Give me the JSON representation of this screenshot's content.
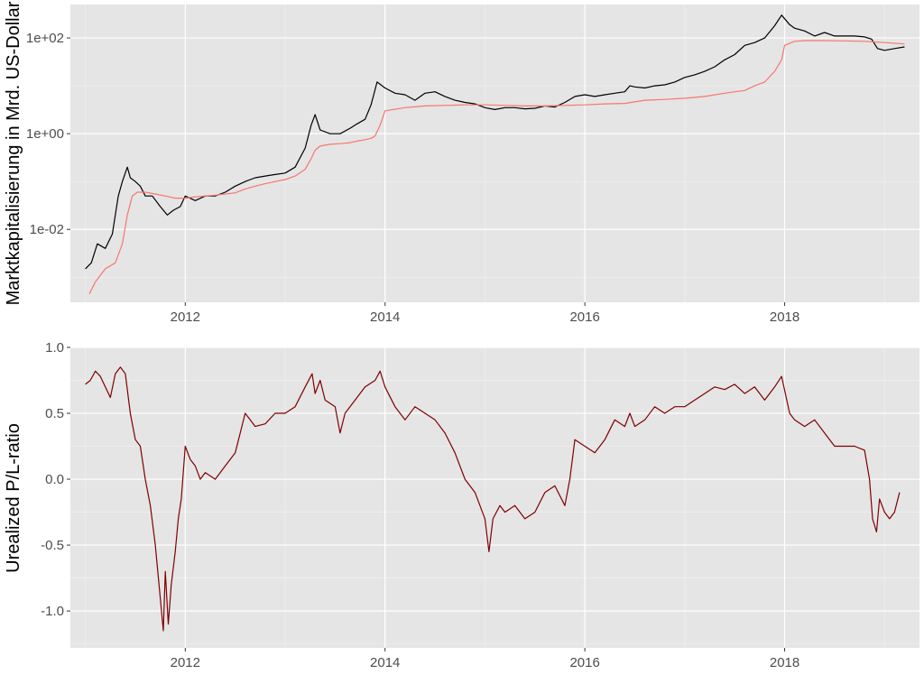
{
  "chart_data": [
    {
      "id": "market-cap-panel",
      "type": "line",
      "title": "",
      "xlabel": "",
      "ylabel": "Marktkapitalisierung in Mrd. US-Dollar",
      "y_scale": "log10",
      "xlim": [
        2010.85,
        2019.35
      ],
      "ylim": [
        0.0003,
        500
      ],
      "x_ticks": [
        2012,
        2014,
        2016,
        2018
      ],
      "x_tick_labels": [
        "2012",
        "2014",
        "2016",
        "2018"
      ],
      "y_ticks": [
        0.01,
        1,
        100
      ],
      "y_tick_labels": [
        "1e-02",
        "1e+00",
        "1e+02"
      ],
      "grid": true,
      "panel_background": "#e5e5e5",
      "series": [
        {
          "color": "#000000",
          "x": [
            2011.0,
            2011.06,
            2011.12,
            2011.2,
            2011.27,
            2011.33,
            2011.37,
            2011.42,
            2011.45,
            2011.5,
            2011.55,
            2011.6,
            2011.67,
            2011.75,
            2011.82,
            2011.88,
            2011.95,
            2012.0,
            2012.1,
            2012.2,
            2012.3,
            2012.4,
            2012.5,
            2012.6,
            2012.7,
            2012.8,
            2012.9,
            2013.0,
            2013.1,
            2013.2,
            2013.26,
            2013.3,
            2013.35,
            2013.45,
            2013.55,
            2013.65,
            2013.72,
            2013.8,
            2013.86,
            2013.92,
            2014.0,
            2014.1,
            2014.2,
            2014.3,
            2014.4,
            2014.5,
            2014.6,
            2014.7,
            2014.8,
            2014.9,
            2015.0,
            2015.1,
            2015.2,
            2015.3,
            2015.4,
            2015.5,
            2015.6,
            2015.7,
            2015.8,
            2015.9,
            2016.0,
            2016.1,
            2016.2,
            2016.3,
            2016.4,
            2016.45,
            2016.5,
            2016.6,
            2016.7,
            2016.8,
            2016.9,
            2017.0,
            2017.1,
            2017.2,
            2017.3,
            2017.4,
            2017.5,
            2017.6,
            2017.7,
            2017.8,
            2017.9,
            2017.97,
            2018.05,
            2018.1,
            2018.2,
            2018.3,
            2018.4,
            2018.5,
            2018.6,
            2018.7,
            2018.8,
            2018.87,
            2018.93,
            2019.0,
            2019.1,
            2019.2
          ],
          "y": [
            0.0015,
            0.002,
            0.005,
            0.004,
            0.008,
            0.05,
            0.1,
            0.2,
            0.12,
            0.1,
            0.08,
            0.05,
            0.05,
            0.03,
            0.02,
            0.025,
            0.03,
            0.05,
            0.04,
            0.05,
            0.05,
            0.06,
            0.08,
            0.1,
            0.12,
            0.13,
            0.14,
            0.15,
            0.2,
            0.5,
            1.5,
            2.5,
            1.2,
            1.0,
            1.0,
            1.3,
            1.6,
            2.0,
            4.0,
            12.0,
            9.0,
            7.0,
            6.5,
            5.0,
            7.0,
            7.5,
            6.0,
            5.0,
            4.5,
            4.2,
            3.5,
            3.2,
            3.5,
            3.5,
            3.3,
            3.4,
            3.8,
            3.6,
            4.5,
            6.0,
            6.5,
            6.0,
            6.5,
            7.0,
            7.5,
            10.0,
            9.5,
            9.0,
            10.0,
            10.5,
            12.0,
            15.0,
            17.0,
            20.0,
            25.0,
            35.0,
            45.0,
            70.0,
            80.0,
            100.0,
            180.0,
            300.0,
            190.0,
            160.0,
            140.0,
            110.0,
            130.0,
            110.0,
            110.0,
            110.0,
            105.0,
            95.0,
            60.0,
            55.0,
            60.0,
            65.0
          ]
        },
        {
          "color": "#f8766d",
          "x": [
            2011.04,
            2011.1,
            2011.2,
            2011.3,
            2011.37,
            2011.42,
            2011.47,
            2011.52,
            2011.6,
            2011.7,
            2011.8,
            2011.9,
            2012.0,
            2012.1,
            2012.2,
            2012.3,
            2012.4,
            2012.5,
            2012.6,
            2012.7,
            2012.8,
            2012.9,
            2013.0,
            2013.1,
            2013.2,
            2013.26,
            2013.3,
            2013.35,
            2013.45,
            2013.55,
            2013.65,
            2013.72,
            2013.8,
            2013.86,
            2013.9,
            2013.95,
            2014.0,
            2014.2,
            2014.4,
            2014.6,
            2014.8,
            2015.0,
            2015.2,
            2015.4,
            2015.6,
            2015.8,
            2016.0,
            2016.2,
            2016.4,
            2016.6,
            2016.8,
            2017.0,
            2017.2,
            2017.4,
            2017.5,
            2017.6,
            2017.7,
            2017.8,
            2017.9,
            2017.97,
            2018.0,
            2018.1,
            2018.2,
            2018.4,
            2018.6,
            2018.8,
            2019.0,
            2019.2
          ],
          "y": [
            0.00045,
            0.0008,
            0.0015,
            0.002,
            0.005,
            0.02,
            0.05,
            0.06,
            0.06,
            0.055,
            0.05,
            0.045,
            0.045,
            0.048,
            0.05,
            0.052,
            0.055,
            0.058,
            0.07,
            0.08,
            0.09,
            0.1,
            0.11,
            0.13,
            0.18,
            0.3,
            0.45,
            0.55,
            0.6,
            0.62,
            0.65,
            0.7,
            0.75,
            0.8,
            0.9,
            1.5,
            3.0,
            3.5,
            3.8,
            3.9,
            4.0,
            4.0,
            3.9,
            3.8,
            3.8,
            3.9,
            4.0,
            4.2,
            4.3,
            5.0,
            5.2,
            5.5,
            6.0,
            7.0,
            7.5,
            8.0,
            10.0,
            12.0,
            20.0,
            35.0,
            70.0,
            85.0,
            88.0,
            88.0,
            87.0,
            85.0,
            80.0,
            75.0
          ]
        }
      ]
    },
    {
      "id": "pl-ratio-panel",
      "type": "line",
      "title": "",
      "xlabel": "",
      "ylabel": "Urealized P/L-ratio",
      "y_scale": "linear",
      "xlim": [
        2010.85,
        2019.35
      ],
      "ylim": [
        -1.28,
        1.0
      ],
      "x_ticks": [
        2012,
        2014,
        2016,
        2018
      ],
      "x_tick_labels": [
        "2012",
        "2014",
        "2016",
        "2018"
      ],
      "y_ticks": [
        -1.0,
        -0.5,
        0.0,
        0.5,
        1.0
      ],
      "y_tick_labels": [
        "-1.0",
        "-0.5",
        "0.0",
        "0.5",
        "1.0"
      ],
      "grid": true,
      "panel_background": "#e5e5e5",
      "series": [
        {
          "color": "#7f0000",
          "x": [
            2011.0,
            2011.05,
            2011.1,
            2011.15,
            2011.2,
            2011.25,
            2011.3,
            2011.35,
            2011.4,
            2011.45,
            2011.5,
            2011.55,
            2011.6,
            2011.65,
            2011.7,
            2011.75,
            2011.78,
            2011.8,
            2011.83,
            2011.86,
            2011.9,
            2011.93,
            2011.96,
            2012.0,
            2012.05,
            2012.1,
            2012.15,
            2012.2,
            2012.3,
            2012.4,
            2012.5,
            2012.6,
            2012.65,
            2012.7,
            2012.8,
            2012.9,
            2013.0,
            2013.1,
            2013.2,
            2013.27,
            2013.3,
            2013.35,
            2013.4,
            2013.5,
            2013.55,
            2013.6,
            2013.7,
            2013.8,
            2013.9,
            2013.95,
            2014.0,
            2014.1,
            2014.2,
            2014.3,
            2014.4,
            2014.5,
            2014.6,
            2014.7,
            2014.8,
            2014.9,
            2015.0,
            2015.04,
            2015.08,
            2015.15,
            2015.2,
            2015.3,
            2015.4,
            2015.5,
            2015.6,
            2015.7,
            2015.8,
            2015.85,
            2015.9,
            2016.0,
            2016.1,
            2016.2,
            2016.3,
            2016.4,
            2016.45,
            2016.5,
            2016.6,
            2016.7,
            2016.8,
            2016.9,
            2017.0,
            2017.1,
            2017.2,
            2017.3,
            2017.4,
            2017.5,
            2017.6,
            2017.7,
            2017.8,
            2017.9,
            2017.97,
            2018.05,
            2018.1,
            2018.2,
            2018.3,
            2018.4,
            2018.5,
            2018.6,
            2018.7,
            2018.8,
            2018.85,
            2018.88,
            2018.92,
            2018.95,
            2019.0,
            2019.05,
            2019.1,
            2019.15
          ],
          "y": [
            0.72,
            0.75,
            0.82,
            0.78,
            0.7,
            0.62,
            0.8,
            0.85,
            0.8,
            0.5,
            0.3,
            0.25,
            0.0,
            -0.2,
            -0.5,
            -0.9,
            -1.15,
            -0.7,
            -1.1,
            -0.8,
            -0.55,
            -0.3,
            -0.15,
            0.25,
            0.15,
            0.1,
            0.0,
            0.05,
            0.0,
            0.1,
            0.2,
            0.5,
            0.45,
            0.4,
            0.42,
            0.5,
            0.5,
            0.55,
            0.7,
            0.8,
            0.65,
            0.75,
            0.6,
            0.55,
            0.35,
            0.5,
            0.6,
            0.7,
            0.75,
            0.82,
            0.7,
            0.55,
            0.45,
            0.55,
            0.5,
            0.45,
            0.35,
            0.2,
            0.0,
            -0.1,
            -0.3,
            -0.55,
            -0.3,
            -0.2,
            -0.25,
            -0.2,
            -0.3,
            -0.25,
            -0.1,
            -0.05,
            -0.2,
            0.0,
            0.3,
            0.25,
            0.2,
            0.3,
            0.45,
            0.4,
            0.5,
            0.4,
            0.45,
            0.55,
            0.5,
            0.55,
            0.55,
            0.6,
            0.65,
            0.7,
            0.68,
            0.72,
            0.65,
            0.7,
            0.6,
            0.7,
            0.78,
            0.5,
            0.45,
            0.4,
            0.45,
            0.35,
            0.25,
            0.25,
            0.25,
            0.22,
            0.0,
            -0.3,
            -0.4,
            -0.15,
            -0.25,
            -0.3,
            -0.25,
            -0.1
          ]
        }
      ]
    }
  ]
}
